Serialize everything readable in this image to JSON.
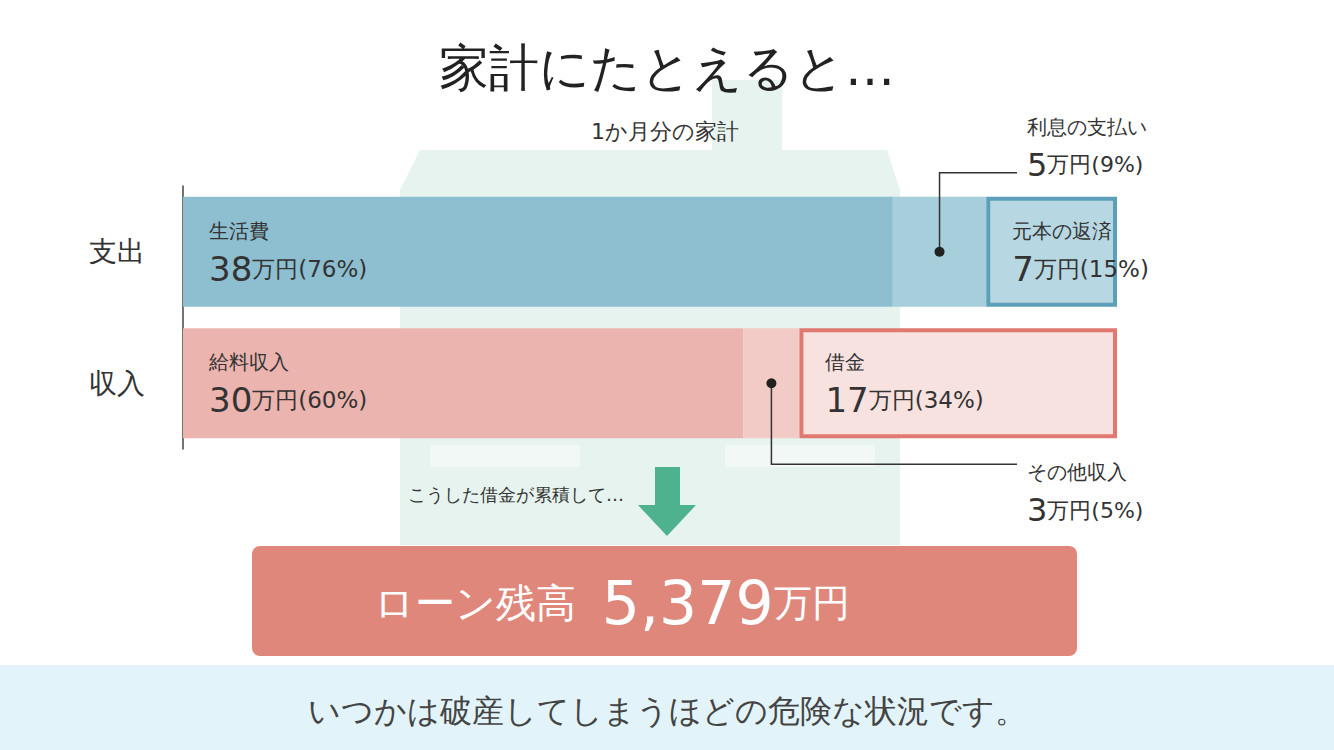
{
  "chart_data": {
    "type": "bar",
    "title": "家計にたとえると…",
    "subtitle": "1か月分の家計",
    "orientation": "horizontal",
    "stacked": true,
    "data_labels": true,
    "tick_labels": "y",
    "grid": false,
    "categories": [
      "支出",
      "収入"
    ],
    "xlim": [
      0,
      50
    ],
    "xticks": [],
    "series": [
      {
        "name": "生活費",
        "color": "#8dbfd0",
        "values": [
          38,
          null
        ],
        "value_labels": [
          "38万円(76%)",
          null
        ]
      },
      {
        "name": "利息の支払い",
        "color": "#a6cedb",
        "values": [
          5,
          null
        ],
        "value_labels": [
          "5万円(9%)",
          null
        ]
      },
      {
        "name": "元本の返済",
        "color": "#b7d8e2",
        "values": [
          7,
          null
        ],
        "value_labels": [
          "7万円(15%)",
          null
        ]
      },
      {
        "name": "給料収入",
        "color": "#ebb4ae",
        "values": [
          null,
          30
        ],
        "value_labels": [
          null,
          "30万円(60%)"
        ]
      },
      {
        "name": "その他収入",
        "color": "#f2cbc6",
        "values": [
          null,
          3
        ],
        "value_labels": [
          null,
          "3万円(5%)"
        ]
      },
      {
        "name": "借金",
        "color": "#f8e2df",
        "values": [
          null,
          17
        ],
        "value_labels": [
          null,
          "17万円(34%)"
        ]
      }
    ]
  },
  "annotations": {
    "arrow_text": "こうした借金が累積して…",
    "loan": {
      "label": "ローン残高",
      "amount": "5,379",
      "unit": "万円"
    },
    "footer": "いつかは破産してしまうほどの危険な状況です。"
  }
}
